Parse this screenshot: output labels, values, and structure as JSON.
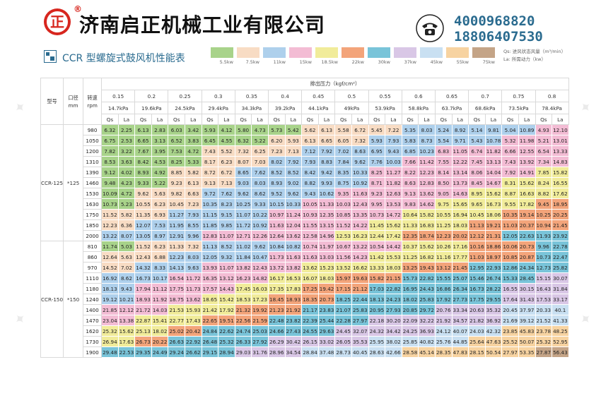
{
  "header": {
    "company": "济南启正机械工业有限公司",
    "logo_char": "正",
    "logo_mark": "®",
    "phones": [
      "4000968820",
      "18806407530"
    ]
  },
  "sub": {
    "title": "CCR 型螺旋式鼓风机性能表",
    "legend": [
      {
        "label": "5.5kw",
        "color": "#a8d38a"
      },
      {
        "label": "7.5kw",
        "color": "#f8dcc4"
      },
      {
        "label": "11kw",
        "color": "#aed0ec"
      },
      {
        "label": "15kw",
        "color": "#f3bcd4"
      },
      {
        "label": "18.5kw",
        "color": "#f1ec9a"
      },
      {
        "label": "22kw",
        "color": "#f3a47a"
      },
      {
        "label": "30kw",
        "color": "#79c4d9"
      },
      {
        "label": "37kw",
        "color": "#d9c7e6"
      },
      {
        "label": "45kw",
        "color": "#c9e0f2"
      },
      {
        "label": "55kw",
        "color": "#f7d3a1"
      },
      {
        "label": "75kw",
        "color": "#c4a487"
      }
    ],
    "note_lines": [
      "Qs: 进风状态风量（m³/min）",
      "La: 所需动力（kw）"
    ]
  },
  "table": {
    "pressure_caption": "排出压力（kgf/cm²）",
    "col_model": "型号",
    "col_bore": "口径\nmm",
    "col_rpm": "转速\nrpm",
    "pressures": [
      "0.15",
      "0.2",
      "0.25",
      "0.3",
      "0.35",
      "0.4",
      "0.45",
      "0.5",
      "0.55",
      "0.6",
      "0.65",
      "0.7",
      "0.75",
      "0.8"
    ],
    "kpa": [
      "14.7kPa",
      "19.6kPa",
      "24.5kPa",
      "29.4kPa",
      "34.3kPa",
      "39.2kPa",
      "44.1kPa",
      "49kPa",
      "53.9kPa",
      "58.8kPa",
      "63.7kPa",
      "68.6kPa",
      "73.5kPa",
      "78.4kPa"
    ],
    "qs_label": "Qs",
    "la_label": "La",
    "groups": [
      {
        "model": "CCR-125",
        "bore": "*125",
        "rows": [
          {
            "rpm": "980",
            "v": [
              "6.32",
              "2.25",
              "6.13",
              "2.83",
              "6.03",
              "3.42",
              "5.93",
              "4.12",
              "5.80",
              "4.73",
              "5.73",
              "5.42",
              "5.62",
              "6.13",
              "5.58",
              "6.72",
              "5.45",
              "7.22",
              "5.35",
              "8.03",
              "5.24",
              "8.92",
              "5.14",
              "9.81",
              "5.04",
              "10.89",
              "4.93",
              "12.10"
            ]
          },
          {
            "rpm": "1050",
            "v": [
              "6.75",
              "2.53",
              "6.65",
              "3.13",
              "6.52",
              "3.83",
              "6.45",
              "4.55",
              "6.32",
              "5.22",
              "6.20",
              "5.93",
              "6.13",
              "6.65",
              "6.05",
              "7.32",
              "5.93",
              "7.93",
              "5.83",
              "8.73",
              "5.54",
              "9.71",
              "5.43",
              "10.78",
              "5.32",
              "11.98",
              "5.21",
              "13.01"
            ]
          },
          {
            "rpm": "1200",
            "v": [
              "7.82",
              "3.22",
              "7.67",
              "3.95",
              "7.53",
              "4.72",
              "7.43",
              "5.52",
              "7.32",
              "6.25",
              "7.23",
              "7.13",
              "7.12",
              "7.92",
              "7.02",
              "8.63",
              "6.95",
              "9.43",
              "6.85",
              "10.23",
              "6.83",
              "11.05",
              "6.74",
              "11.82",
              "6.66",
              "12.55",
              "6.54",
              "13.33"
            ]
          },
          {
            "rpm": "1310",
            "v": [
              "8.53",
              "3.63",
              "8.42",
              "4.53",
              "8.25",
              "5.33",
              "8.17",
              "6.23",
              "8.07",
              "7.03",
              "8.02",
              "7.92",
              "7.93",
              "8.83",
              "7.84",
              "9.62",
              "7.76",
              "10.03",
              "7.66",
              "11.42",
              "7.55",
              "12.22",
              "7.45",
              "13.13",
              "7.43",
              "13.92",
              "7.34",
              "14.83"
            ]
          },
          {
            "rpm": "1390",
            "v": [
              "9.12",
              "4.02",
              "8.93",
              "4.92",
              "8.85",
              "5.82",
              "8.72",
              "6.72",
              "8.65",
              "7.62",
              "8.52",
              "8.52",
              "8.42",
              "9.42",
              "8.35",
              "10.33",
              "8.25",
              "11.27",
              "8.22",
              "12.23",
              "8.14",
              "13.14",
              "8.06",
              "14.04",
              "7.92",
              "14.91",
              "7.85",
              "15.82"
            ]
          },
          {
            "rpm": "1460",
            "v": [
              "9.48",
              "4.23",
              "9.33",
              "5.22",
              "9.23",
              "6.13",
              "9.13",
              "7.13",
              "9.03",
              "8.03",
              "8.93",
              "9.02",
              "8.82",
              "9.93",
              "8.75",
              "10.92",
              "8.71",
              "11.82",
              "8.63",
              "12.83",
              "8.50",
              "13.73",
              "8.45",
              "14.67",
              "8.31",
              "15.62",
              "8.24",
              "16.55"
            ]
          },
          {
            "rpm": "1530",
            "v": [
              "10.09",
              "4.72",
              "9.62",
              "5.63",
              "9.82",
              "6.63",
              "9.72",
              "7.62",
              "9.62",
              "8.62",
              "9.52",
              "9.62",
              "9.43",
              "10.62",
              "9.35",
              "11.63",
              "9.23",
              "12.63",
              "9.13",
              "13.62",
              "9.05",
              "14.63",
              "8.95",
              "15.62",
              "8.87",
              "16.63",
              "8.82",
              "17.62"
            ]
          },
          {
            "rpm": "1630",
            "v": [
              "10.73",
              "5.23",
              "10.55",
              "6.23",
              "10.45",
              "7.23",
              "10.35",
              "8.23",
              "10.25",
              "9.33",
              "10.15",
              "10.33",
              "10.05",
              "11.33",
              "10.03",
              "12.43",
              "9.95",
              "13.53",
              "9.83",
              "14.62",
              "9.75",
              "15.65",
              "9.65",
              "16.73",
              "9.55",
              "17.82",
              "9.45",
              "18.95"
            ]
          },
          {
            "rpm": "1750",
            "v": [
              "11.52",
              "5.82",
              "11.35",
              "6.93",
              "11.27",
              "7.93",
              "11.15",
              "9.15",
              "11.07",
              "10.22",
              "10.97",
              "11.24",
              "10.93",
              "12.35",
              "10.85",
              "13.35",
              "10.73",
              "14.72",
              "10.64",
              "15.82",
              "10.55",
              "16.94",
              "10.45",
              "18.06",
              "10.35",
              "19.14",
              "10.25",
              "20.25"
            ]
          },
          {
            "rpm": "1850",
            "v": [
              "12.23",
              "6.36",
              "12.07",
              "7.53",
              "11.95",
              "8.55",
              "11.85",
              "9.85",
              "11.72",
              "10.92",
              "11.63",
              "12.04",
              "11.55",
              "13.15",
              "11.52",
              "14.22",
              "11.45",
              "15.62",
              "11.33",
              "16.83",
              "11.25",
              "18.03",
              "11.13",
              "19.21",
              "11.03",
              "20.37",
              "10.94",
              "21.45"
            ]
          },
          {
            "rpm": "2000",
            "v": [
              "13.22",
              "8.07",
              "13.05",
              "8.97",
              "12.91",
              "9.96",
              "12.83",
              "11.07",
              "12.71",
              "12.26",
              "12.64",
              "13.62",
              "12.58",
              "14.96",
              "12.53",
              "16.23",
              "12.44",
              "17.42",
              "12.35",
              "18.74",
              "12.23",
              "20.02",
              "12.12",
              "21.31",
              "12.05",
              "22.63",
              "11.93",
              "23.92"
            ]
          }
        ]
      },
      {
        "model": "CCR-150",
        "bore": "*150",
        "rows": [
          {
            "rpm": "810",
            "v": [
              "11.74",
              "5.03",
              "11.52",
              "6.23",
              "11.33",
              "7.32",
              "11.13",
              "8.52",
              "11.02",
              "9.62",
              "10.84",
              "10.82",
              "10.74",
              "11.97",
              "10.67",
              "13.22",
              "10.54",
              "14.42",
              "10.37",
              "15.62",
              "10.26",
              "17.16",
              "10.16",
              "18.86",
              "10.06",
              "20.73",
              "9.96",
              "22.78"
            ]
          },
          {
            "rpm": "860",
            "v": [
              "12.64",
              "5.63",
              "12.43",
              "6.88",
              "12.23",
              "8.03",
              "12.05",
              "9.32",
              "11.84",
              "10.47",
              "11.73",
              "11.63",
              "11.63",
              "13.03",
              "11.56",
              "14.23",
              "11.42",
              "15.53",
              "11.25",
              "16.82",
              "11.16",
              "17.77",
              "11.03",
              "18.97",
              "10.85",
              "20.87",
              "10.73",
              "22.47"
            ]
          },
          {
            "rpm": "970",
            "v": [
              "14.52",
              "7.02",
              "14.32",
              "8.33",
              "14.13",
              "9.63",
              "13.93",
              "11.07",
              "13.82",
              "12.43",
              "13.72",
              "13.82",
              "13.62",
              "15.23",
              "13.52",
              "16.62",
              "13.33",
              "18.03",
              "13.25",
              "19.43",
              "13.12",
              "21.45",
              "12.95",
              "22.93",
              "12.86",
              "24.34",
              "12.73",
              "25.82"
            ]
          },
          {
            "rpm": "1110",
            "v": [
              "16.92",
              "8.62",
              "16.73",
              "10.17",
              "16.54",
              "11.72",
              "16.35",
              "13.12",
              "16.23",
              "14.82",
              "16.17",
              "16.53",
              "16.07",
              "18.03",
              "15.97",
              "19.63",
              "15.82",
              "21.15",
              "15.73",
              "22.82",
              "15.55",
              "25.07",
              "15.46",
              "26.74",
              "15.33",
              "28.45",
              "15.15",
              "30.07"
            ]
          },
          {
            "rpm": "1180",
            "v": [
              "18.13",
              "9.43",
              "17.94",
              "11.12",
              "17.75",
              "11.73",
              "17.57",
              "14.43",
              "17.45",
              "16.03",
              "17.35",
              "17.83",
              "17.25",
              "19.42",
              "17.15",
              "21.12",
              "17.03",
              "22.82",
              "16.95",
              "24.43",
              "16.86",
              "26.34",
              "16.73",
              "28.22",
              "16.55",
              "30.15",
              "16.43",
              "31.84"
            ]
          },
          {
            "rpm": "1240",
            "v": [
              "19.12",
              "10.21",
              "18.93",
              "11.92",
              "18.75",
              "13.62",
              "18.65",
              "15.42",
              "18.53",
              "17.23",
              "18.45",
              "18.93",
              "18.35",
              "20.73",
              "18.25",
              "22.44",
              "18.13",
              "24.23",
              "18.02",
              "25.83",
              "17.92",
              "27.73",
              "17.75",
              "29.55",
              "17.64",
              "31.43",
              "17.53",
              "33.17"
            ]
          },
          {
            "rpm": "1400",
            "v": [
              "21.85",
              "12.12",
              "21.72",
              "14.03",
              "21.53",
              "15.93",
              "21.42",
              "17.92",
              "21.32",
              "19.92",
              "21.23",
              "21.92",
              "21.17",
              "23.83",
              "21.07",
              "25.83",
              "20.95",
              "27.93",
              "20.85",
              "29.72",
              "20.76",
              "33.34",
              "20.63",
              "35.32",
              "20.45",
              "37.97",
              "20.33",
              "40.1"
            ]
          },
          {
            "rpm": "1470",
            "v": [
              "23.04",
              "13.38",
              "22.87",
              "15.41",
              "22.77",
              "17.43",
              "22.65",
              "19.51",
              "22.56",
              "21.59",
              "22.48",
              "23.82",
              "22.39",
              "25.44",
              "22.28",
              "27.97",
              "22.18",
              "30.20",
              "22.09",
              "32.22",
              "21.92",
              "34.57",
              "21.82",
              "36.92",
              "21.69",
              "39.12",
              "21.52",
              "41.33"
            ]
          },
          {
            "rpm": "1620",
            "v": [
              "25.32",
              "15.62",
              "25.13",
              "18.02",
              "25.02",
              "20.42",
              "24.84",
              "22.62",
              "24.74",
              "25.03",
              "24.66",
              "27.43",
              "24.55",
              "29.63",
              "24.45",
              "32.07",
              "24.32",
              "34.42",
              "24.25",
              "36.93",
              "24.12",
              "40.07",
              "24.03",
              "42.32",
              "23.85",
              "45.83",
              "23.78",
              "48.25"
            ]
          },
          {
            "rpm": "1730",
            "v": [
              "26.94",
              "17.63",
              "26.73",
              "20.22",
              "26.63",
              "22.92",
              "26.48",
              "25.32",
              "26.33",
              "27.92",
              "26.29",
              "30.42",
              "26.15",
              "33.02",
              "26.05",
              "35.53",
              "25.95",
              "38.02",
              "25.85",
              "40.82",
              "25.76",
              "44.85",
              "25.64",
              "47.63",
              "25.52",
              "50.07",
              "25.32",
              "52.95"
            ]
          },
          {
            "rpm": "1900",
            "v": [
              "29.48",
              "22.53",
              "29.35",
              "24.49",
              "29.24",
              "26.62",
              "29.15",
              "28.94",
              "29.03",
              "31.76",
              "28.96",
              "34.54",
              "28.84",
              "37.48",
              "28.73",
              "40.45",
              "28.63",
              "42.66",
              "28.58",
              "45.14",
              "28.35",
              "47.83",
              "28.15",
              "50.54",
              "27.97",
              "53.35",
              "27.87",
              "56.43"
            ]
          }
        ]
      }
    ]
  }
}
